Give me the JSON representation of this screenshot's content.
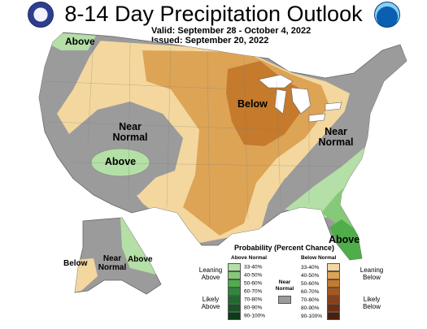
{
  "title": "8-14 Day Precipitation Outlook",
  "valid": {
    "label": "Valid:",
    "value": "September 28 - October 4, 2022"
  },
  "issued": {
    "label": "Issued:",
    "value": "September 20, 2022"
  },
  "map_labels": {
    "above_nw": "Above",
    "near_normal_west": "Near Normal",
    "above_west": "Above",
    "below_center": "Below",
    "near_normal_east": "Near Normal",
    "above_fl": "Above",
    "ak_below": "Below",
    "ak_near_normal": "Near Normal",
    "ak_above": "Above"
  },
  "legend": {
    "title": "Probability (Percent Chance)",
    "above_header": "Above Normal",
    "below_header": "Below Normal",
    "near_normal": "Near Normal",
    "leaning_above": "Leaning Above",
    "likely_above": "Likely Above",
    "leaning_below": "Leaning Below",
    "likely_below": "Likely Below",
    "above_rows": [
      {
        "label": "33-40%",
        "color": "#b4dfa6"
      },
      {
        "label": "40-50%",
        "color": "#86c979"
      },
      {
        "label": "50-60%",
        "color": "#4fae49"
      },
      {
        "label": "60-70%",
        "color": "#2e8a3a"
      },
      {
        "label": "70-80%",
        "color": "#1f6b2e"
      },
      {
        "label": "80-90%",
        "color": "#175426"
      },
      {
        "label": "90-100%",
        "color": "#0d3a18"
      }
    ],
    "below_rows": [
      {
        "label": "33-40%",
        "color": "#f3d79e"
      },
      {
        "label": "40-50%",
        "color": "#dda456"
      },
      {
        "label": "50-60%",
        "color": "#c57a2c"
      },
      {
        "label": "60-70%",
        "color": "#a8561c"
      },
      {
        "label": "70-80%",
        "color": "#8a3f16"
      },
      {
        "label": "80-90%",
        "color": "#6e2e10"
      },
      {
        "label": "90-100%",
        "color": "#4a1f0c"
      }
    ],
    "near_normal_color": "#9b9b9b"
  },
  "colors": {
    "near_normal": "#9b9b9b",
    "above_33_40": "#b4dfa6",
    "above_40_50": "#86c979",
    "above_50_60": "#4fae49",
    "below_33_40": "#f3d79e",
    "below_40_50": "#dda456",
    "below_50_60": "#c57a2c"
  },
  "logos": {
    "left": "department-of-commerce-seal",
    "right": "noaa-logo"
  }
}
